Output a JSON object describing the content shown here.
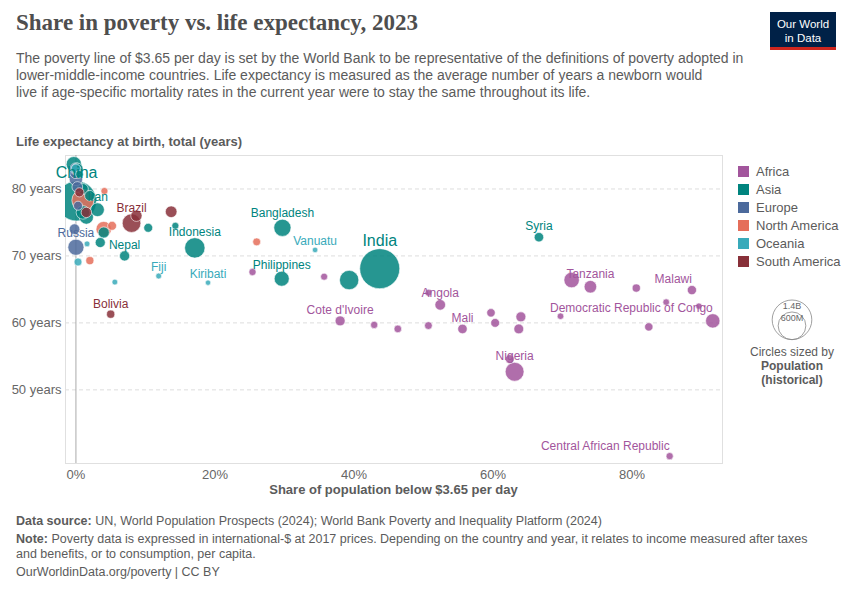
{
  "chart_data": {
    "type": "scatter",
    "title": "Share in poverty vs. life expectancy, 2023",
    "subtitle": [
      "The poverty line of $3.65 per day is set by the World Bank to be representative of the definitions of poverty adopted in",
      "lower-middle-income countries. Life expectancy is measured as the average number of years a newborn would",
      "live if age-specific mortality rates in the current year were to stay the same throughout its life."
    ],
    "logo": [
      "Our World",
      "in Data"
    ],
    "y_label": "Life expectancy at birth, total (years)",
    "x_label": "Share of population below $3.65 per day",
    "xlim": [
      -1.5,
      93
    ],
    "xticks": [
      {
        "value": 0,
        "label": "0%"
      },
      {
        "value": 20,
        "label": "20%"
      },
      {
        "value": 40,
        "label": "40%"
      },
      {
        "value": 60,
        "label": "60%"
      },
      {
        "value": 80,
        "label": "80%"
      }
    ],
    "ylim": [
      39,
      85
    ],
    "yticks": [
      {
        "value": 50,
        "label": "50 years"
      },
      {
        "value": 60,
        "label": "60 years"
      },
      {
        "value": 70,
        "label": "70 years"
      },
      {
        "value": 80,
        "label": "80 years"
      }
    ],
    "grid": true,
    "legend": "right",
    "size_legend": {
      "caption": "Circles sized by",
      "title": "Population (historical)",
      "values": [
        {
          "value": 1400000000,
          "label": "1.4B"
        },
        {
          "value": 600000000,
          "label": "600M"
        }
      ]
    },
    "series": [
      {
        "name": "Africa",
        "color": "#a2559c",
        "points": [
          {
            "label": "Angola",
            "x": 52.4,
            "y": 62.7,
            "population": 37000000
          },
          {
            "label": "Cote d'Ivoire",
            "x": 38.0,
            "y": 60.3,
            "population": 29000000
          },
          {
            "label": "Mali",
            "x": 55.6,
            "y": 59.1,
            "population": 23000000
          },
          {
            "label": "Tanzania",
            "x": 74.0,
            "y": 65.4,
            "population": 67000000
          },
          {
            "label": "Malawi",
            "x": 88.6,
            "y": 64.9,
            "population": 21000000
          },
          {
            "label": "Democratic Republic of Congo",
            "x": 91.6,
            "y": 60.3,
            "population": 102000000
          },
          {
            "label": "Nigeria",
            "x": 63.1,
            "y": 52.7,
            "population": 224000000
          },
          {
            "label": "Central African Republic",
            "x": 85.4,
            "y": 40.1,
            "population": 5700000
          },
          {
            "x": 71.3,
            "y": 66.4,
            "population": 127000000
          },
          {
            "x": 80.6,
            "y": 65.2,
            "population": 12000000
          },
          {
            "x": 62.4,
            "y": 54.6,
            "population": 18000000
          },
          {
            "x": 64.0,
            "y": 60.9,
            "population": 29000000
          },
          {
            "x": 59.7,
            "y": 61.5,
            "population": 14000000
          },
          {
            "x": 60.3,
            "y": 60.0,
            "population": 17000000
          },
          {
            "x": 63.7,
            "y": 59.1,
            "population": 27000000
          },
          {
            "x": 50.7,
            "y": 59.6,
            "population": 9000000
          },
          {
            "x": 46.3,
            "y": 59.1,
            "population": 8000000
          },
          {
            "x": 42.9,
            "y": 59.7,
            "population": 6000000
          },
          {
            "x": 35.7,
            "y": 66.9,
            "population": 5000000
          },
          {
            "x": 25.4,
            "y": 67.6,
            "population": 6000000
          },
          {
            "x": 50.7,
            "y": 64.5,
            "population": 4000000
          },
          {
            "x": 82.4,
            "y": 59.4,
            "population": 13000000
          },
          {
            "x": 69.7,
            "y": 61.0,
            "population": 3000000
          },
          {
            "x": 89.6,
            "y": 62.5,
            "population": 2000000
          },
          {
            "x": 84.9,
            "y": 63.1,
            "population": 3000000
          }
        ]
      },
      {
        "name": "Asia",
        "color": "#00847e",
        "points": [
          {
            "label": "China",
            "x": 0.1,
            "y": 78.2,
            "population": 1420000000
          },
          {
            "label": "India",
            "x": 43.7,
            "y": 68.1,
            "population": 1430000000
          },
          {
            "label": "Indonesia",
            "x": 17.1,
            "y": 71.2,
            "population": 277000000
          },
          {
            "label": "Bangladesh",
            "x": 29.7,
            "y": 74.2,
            "population": 173000000
          },
          {
            "label": "Philippines",
            "x": 29.6,
            "y": 66.6,
            "population": 117000000
          },
          {
            "label": "Nepal",
            "x": 7.0,
            "y": 70.0,
            "population": 31000000
          },
          {
            "label": "Iran",
            "x": 3.1,
            "y": 76.9,
            "population": 89000000
          },
          {
            "label": "Syria",
            "x": 66.6,
            "y": 72.8,
            "population": 23000000
          },
          {
            "x": 39.3,
            "y": 66.4,
            "population": 240000000
          },
          {
            "x": -0.3,
            "y": 83.7,
            "population": 124000000
          },
          {
            "x": 0.2,
            "y": 83.0,
            "population": 51000000
          },
          {
            "x": 0.5,
            "y": 82.2,
            "population": 9000000
          },
          {
            "x": 1.0,
            "y": 80.0,
            "population": 40000000
          },
          {
            "x": 1.5,
            "y": 75.8,
            "population": 99000000
          },
          {
            "x": 2.0,
            "y": 79.0,
            "population": 35000000
          },
          {
            "x": 3.5,
            "y": 72.0,
            "population": 30000000
          },
          {
            "x": 10.4,
            "y": 74.2,
            "population": 18000000
          },
          {
            "x": 14.3,
            "y": 74.5,
            "population": 5000000
          },
          {
            "x": 1.0,
            "y": 76.5,
            "population": 85000000
          },
          {
            "x": 4.0,
            "y": 73.5,
            "population": 44000000
          }
        ]
      },
      {
        "name": "Europe",
        "color": "#4c6a9c",
        "points": [
          {
            "label": "Russia",
            "x": 0.0,
            "y": 71.3,
            "population": 144000000
          },
          {
            "x": 0.0,
            "y": 81.5,
            "population": 84000000
          },
          {
            "x": 0.0,
            "y": 82.5,
            "population": 68000000
          },
          {
            "x": 0.0,
            "y": 83.0,
            "population": 59000000
          },
          {
            "x": 0.2,
            "y": 80.3,
            "population": 38000000
          },
          {
            "x": -0.2,
            "y": 74.0,
            "population": 37000000
          },
          {
            "x": 0.3,
            "y": 77.5,
            "population": 19000000
          }
        ]
      },
      {
        "name": "North America",
        "color": "#e56e5a",
        "points": [
          {
            "x": 1.0,
            "y": 78.3,
            "population": 340000000
          },
          {
            "x": 4.0,
            "y": 74.0,
            "population": 128000000
          },
          {
            "x": 2.0,
            "y": 69.3,
            "population": 11000000
          },
          {
            "x": 26.0,
            "y": 72.1,
            "population": 10000000
          },
          {
            "x": 4.1,
            "y": 79.7,
            "population": 5000000
          },
          {
            "x": 5.2,
            "y": 74.5,
            "population": 18000000
          }
        ]
      },
      {
        "name": "Oceania",
        "color": "#38aaba",
        "points": [
          {
            "label": "Fiji",
            "x": 11.9,
            "y": 67.0,
            "population": 900000
          },
          {
            "label": "Kiribati",
            "x": 19.0,
            "y": 66.0,
            "population": 130000
          },
          {
            "label": "Vanuatu",
            "x": 34.4,
            "y": 70.9,
            "population": 330000
          },
          {
            "x": 0.3,
            "y": 69.1,
            "population": 10000000
          },
          {
            "x": 1.6,
            "y": 71.8,
            "population": 700000
          },
          {
            "x": 0.0,
            "y": 83.0,
            "population": 26000000
          },
          {
            "x": 5.6,
            "y": 66.1,
            "population": 700000
          }
        ]
      },
      {
        "name": "South America",
        "color": "#883039",
        "points": [
          {
            "label": "Brazil",
            "x": 8.0,
            "y": 74.9,
            "population": 216000000
          },
          {
            "label": "Bolivia",
            "x": 5.0,
            "y": 61.3,
            "population": 12000000
          },
          {
            "x": 13.7,
            "y": 76.6,
            "population": 52000000
          },
          {
            "x": 8.7,
            "y": 76.0,
            "population": 46000000
          },
          {
            "x": 0.5,
            "y": 79.5,
            "population": 20000000
          },
          {
            "x": 1.5,
            "y": 76.5,
            "population": 34000000
          }
        ]
      }
    ],
    "source": "Data source: UN, World Population Prospects (2024); World Bank Poverty and Inequality Platform (2024)",
    "note": "Note: Poverty data is expressed in international-$ at 2017 prices. Depending on the country and year, it relates to income measured after taxes and benefits, or to consumption, per capita.",
    "url": "OurWorldinData.org/poverty | CC BY"
  }
}
